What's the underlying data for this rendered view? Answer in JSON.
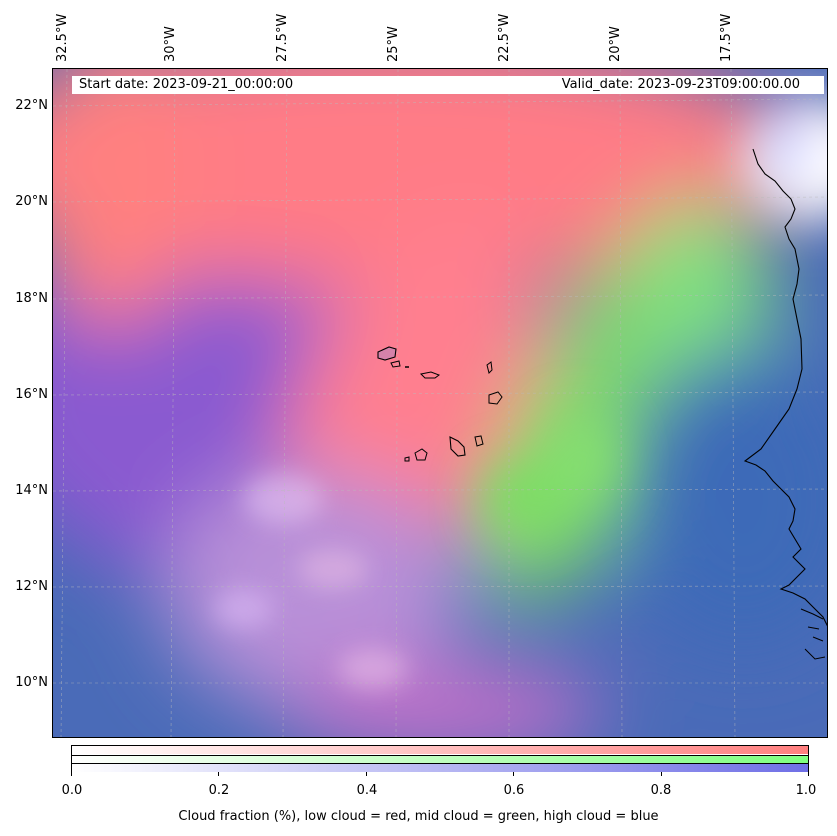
{
  "map": {
    "lon_labels": [
      "32.5°W",
      "30°W",
      "27.5°W",
      "25°W",
      "22.5°W",
      "20°W",
      "17.5°W"
    ],
    "lat_labels": [
      "22°N",
      "20°N",
      "18°N",
      "16°N",
      "14°N",
      "12°N",
      "10°N"
    ],
    "start_date": "Start date: 2023-09-21_00:00:00",
    "valid_date": "Valid_date: 2023-09-23T09:00:00.00"
  },
  "colorbar": {
    "ticks": [
      "0.0",
      "0.2",
      "0.4",
      "0.6",
      "0.8",
      "1.0"
    ],
    "label": "Cloud fraction (%), low cloud = red, mid cloud = green, high cloud = blue",
    "colors": {
      "low": "#ff7f7f",
      "mid": "#7fff7f",
      "high": "#6f6fe6"
    }
  }
}
